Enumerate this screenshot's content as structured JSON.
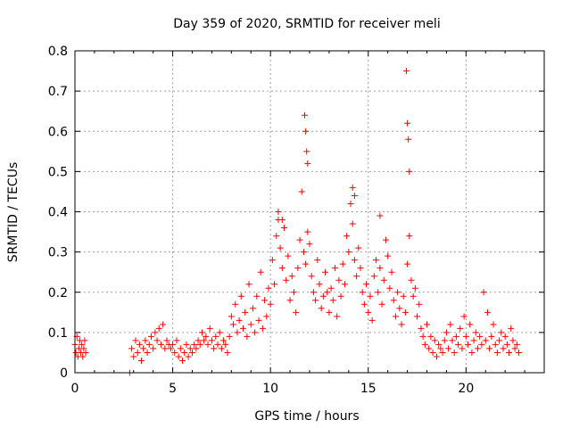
{
  "chart_data": {
    "type": "scatter",
    "title": "Day 359 of 2020, SRMTID for receiver meli",
    "xlabel": "GPS time / hours",
    "ylabel": "SRMTID / TECUs",
    "xlim": [
      0,
      24
    ],
    "ylim": [
      0,
      0.8
    ],
    "xticks": [
      0,
      5,
      10,
      15,
      20
    ],
    "xtick_labels": [
      "0",
      "5",
      "10",
      "15",
      "20"
    ],
    "yticks": [
      0,
      0.1,
      0.2,
      0.3,
      0.4,
      0.5,
      0.6,
      0.7,
      0.8
    ],
    "ytick_labels": [
      "0",
      "0.1",
      "0.2",
      "0.3",
      "0.4",
      "0.5",
      "0.6",
      "0.7",
      "0.8"
    ],
    "grid": true,
    "marker": "+",
    "color": "#ff0000",
    "series": [
      {
        "name": "meli",
        "x": [
          0.0,
          0.05,
          0.1,
          0.15,
          0.2,
          0.25,
          0.3,
          0.35,
          0.4,
          0.45,
          0.5,
          0.55,
          2.8,
          2.9,
          3.0,
          3.1,
          3.2,
          3.3,
          3.4,
          3.5,
          3.6,
          3.7,
          3.8,
          3.9,
          4.0,
          4.1,
          4.2,
          4.3,
          4.4,
          4.5,
          4.6,
          4.7,
          4.8,
          4.9,
          5.0,
          5.1,
          5.2,
          5.3,
          5.4,
          5.5,
          5.6,
          5.7,
          5.8,
          5.9,
          6.0,
          6.1,
          6.2,
          6.3,
          6.4,
          6.5,
          6.6,
          6.7,
          6.8,
          6.9,
          7.0,
          7.1,
          7.2,
          7.3,
          7.4,
          7.5,
          7.6,
          7.7,
          7.8,
          7.9,
          8.0,
          8.1,
          8.2,
          8.3,
          8.4,
          8.5,
          8.6,
          8.7,
          8.8,
          8.9,
          9.0,
          9.1,
          9.2,
          9.3,
          9.4,
          9.5,
          9.6,
          9.7,
          9.8,
          9.9,
          10.0,
          10.1,
          10.2,
          10.3,
          10.4,
          10.5,
          10.6,
          10.7,
          10.8,
          10.9,
          11.0,
          11.1,
          11.2,
          11.3,
          11.4,
          11.5,
          11.6,
          11.7,
          11.8,
          11.9,
          12.0,
          12.1,
          12.2,
          12.3,
          12.4,
          12.5,
          12.6,
          12.7,
          12.8,
          12.9,
          13.0,
          13.1,
          13.2,
          13.3,
          13.4,
          13.5,
          13.6,
          13.7,
          13.8,
          13.9,
          14.0,
          14.1,
          14.2,
          14.3,
          14.4,
          14.5,
          14.6,
          14.7,
          14.8,
          14.9,
          15.0,
          15.1,
          15.2,
          15.3,
          15.4,
          15.5,
          15.6,
          15.7,
          15.8,
          15.9,
          16.0,
          16.1,
          16.2,
          16.3,
          16.4,
          16.5,
          16.6,
          16.7,
          16.8,
          16.9,
          17.0,
          17.1,
          17.2,
          17.3,
          17.4,
          17.5,
          17.6,
          17.7,
          17.8,
          17.9,
          18.0,
          18.1,
          18.2,
          18.3,
          18.4,
          18.5,
          18.6,
          18.7,
          18.8,
          18.9,
          19.0,
          19.1,
          19.2,
          19.3,
          19.4,
          19.5,
          19.6,
          19.7,
          19.8,
          19.9,
          20.0,
          20.1,
          20.2,
          20.3,
          20.4,
          20.5,
          20.6,
          20.7,
          20.8,
          20.9,
          21.0,
          21.1,
          21.2,
          21.3,
          21.4,
          21.5,
          21.6,
          21.7,
          21.8,
          21.9,
          22.0,
          22.1,
          22.2,
          22.3,
          22.4,
          22.5,
          22.6,
          22.7,
          11.75,
          11.8,
          11.85,
          11.9,
          16.95,
          17.0,
          17.05,
          17.1,
          14.2,
          14.3,
          15.6,
          10.4,
          10.6
        ],
        "y": [
          0.07,
          0.05,
          0.09,
          0.04,
          0.06,
          0.08,
          0.05,
          0.07,
          0.04,
          0.06,
          0.08,
          0.05,
          0.0,
          0.06,
          0.04,
          0.08,
          0.05,
          0.07,
          0.03,
          0.06,
          0.08,
          0.05,
          0.07,
          0.09,
          0.06,
          0.1,
          0.08,
          0.11,
          0.07,
          0.12,
          0.06,
          0.08,
          0.07,
          0.06,
          0.07,
          0.05,
          0.08,
          0.04,
          0.06,
          0.03,
          0.05,
          0.07,
          0.04,
          0.06,
          0.05,
          0.07,
          0.06,
          0.08,
          0.07,
          0.1,
          0.08,
          0.09,
          0.07,
          0.11,
          0.08,
          0.06,
          0.09,
          0.07,
          0.1,
          0.06,
          0.08,
          0.07,
          0.05,
          0.09,
          0.14,
          0.12,
          0.17,
          0.1,
          0.13,
          0.19,
          0.11,
          0.15,
          0.09,
          0.22,
          0.12,
          0.16,
          0.1,
          0.19,
          0.13,
          0.25,
          0.11,
          0.18,
          0.14,
          0.21,
          0.17,
          0.28,
          0.22,
          0.34,
          0.38,
          0.31,
          0.26,
          0.36,
          0.23,
          0.29,
          0.18,
          0.24,
          0.2,
          0.15,
          0.26,
          0.33,
          0.45,
          0.3,
          0.27,
          0.35,
          0.32,
          0.24,
          0.2,
          0.18,
          0.28,
          0.22,
          0.16,
          0.19,
          0.25,
          0.2,
          0.15,
          0.21,
          0.18,
          0.26,
          0.14,
          0.23,
          0.19,
          0.27,
          0.22,
          0.34,
          0.3,
          0.42,
          0.37,
          0.28,
          0.24,
          0.31,
          0.26,
          0.2,
          0.17,
          0.22,
          0.15,
          0.19,
          0.13,
          0.24,
          0.28,
          0.2,
          0.26,
          0.17,
          0.23,
          0.33,
          0.29,
          0.21,
          0.25,
          0.18,
          0.14,
          0.2,
          0.16,
          0.12,
          0.19,
          0.15,
          0.27,
          0.34,
          0.23,
          0.19,
          0.21,
          0.14,
          0.17,
          0.11,
          0.09,
          0.07,
          0.12,
          0.06,
          0.09,
          0.05,
          0.08,
          0.04,
          0.07,
          0.06,
          0.05,
          0.08,
          0.1,
          0.06,
          0.12,
          0.08,
          0.05,
          0.09,
          0.07,
          0.11,
          0.06,
          0.14,
          0.09,
          0.07,
          0.12,
          0.05,
          0.08,
          0.1,
          0.06,
          0.09,
          0.07,
          0.2,
          0.08,
          0.15,
          0.06,
          0.09,
          0.12,
          0.07,
          0.05,
          0.08,
          0.1,
          0.06,
          0.09,
          0.07,
          0.05,
          0.11,
          0.08,
          0.06,
          0.07,
          0.05,
          0.64,
          0.6,
          0.55,
          0.52,
          0.75,
          0.62,
          0.58,
          0.5,
          0.46,
          0.44,
          0.39,
          0.4,
          0.38
        ]
      }
    ]
  }
}
